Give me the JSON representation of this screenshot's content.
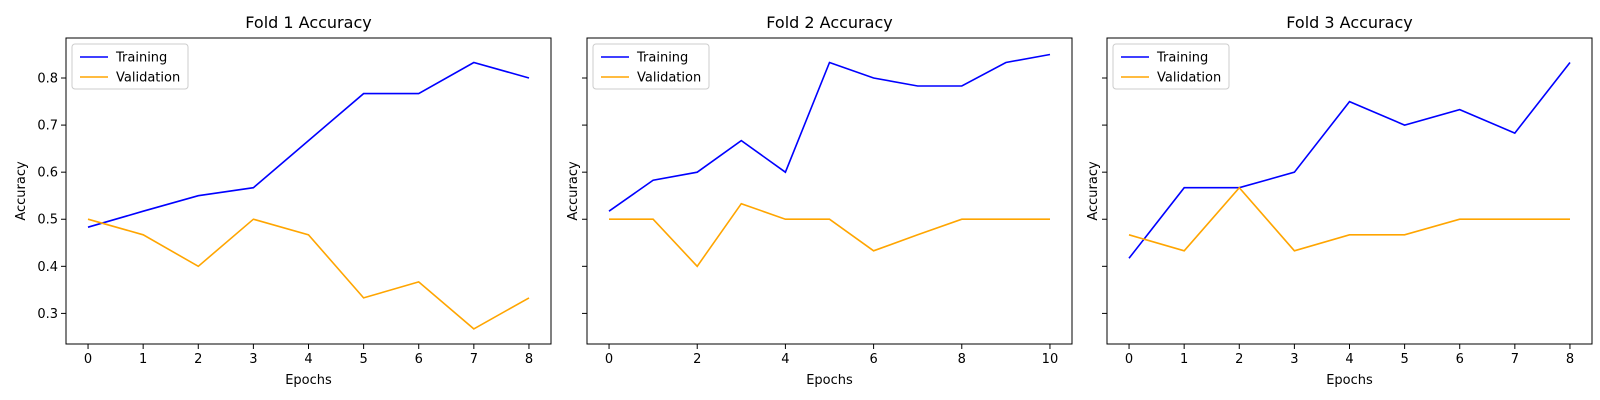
{
  "chart_data": [
    {
      "type": "line",
      "title": "Fold 1 Accuracy",
      "xlabel": "Epochs",
      "ylabel": "Accuracy",
      "xlim": [
        -0.4,
        8.4
      ],
      "ylim": [
        0.235,
        0.885
      ],
      "xticks": [
        0,
        1,
        2,
        3,
        4,
        5,
        6,
        7,
        8
      ],
      "yticks": [
        0.3,
        0.4,
        0.5,
        0.6,
        0.7,
        0.8
      ],
      "ytick_labels_visible": true,
      "grid": false,
      "legend": "upper left",
      "series": [
        {
          "name": "Training",
          "color": "#0000ff",
          "x": [
            0,
            1,
            2,
            3,
            4,
            5,
            6,
            7,
            8
          ],
          "values": [
            0.483,
            0.517,
            0.55,
            0.567,
            0.667,
            0.767,
            0.767,
            0.833,
            0.8
          ]
        },
        {
          "name": "Validation",
          "color": "#ffa500",
          "x": [
            0,
            1,
            2,
            3,
            4,
            5,
            6,
            7,
            8
          ],
          "values": [
            0.5,
            0.467,
            0.4,
            0.5,
            0.467,
            0.333,
            0.367,
            0.267,
            0.333
          ]
        }
      ]
    },
    {
      "type": "line",
      "title": "Fold 2 Accuracy",
      "xlabel": "Epochs",
      "ylabel": "Accuracy",
      "xlim": [
        -0.5,
        10.5
      ],
      "ylim": [
        0.235,
        0.885
      ],
      "xticks": [
        0,
        2,
        4,
        6,
        8,
        10
      ],
      "yticks": [
        0.3,
        0.4,
        0.5,
        0.6,
        0.7,
        0.8
      ],
      "ytick_labels_visible": false,
      "grid": false,
      "legend": "upper left",
      "series": [
        {
          "name": "Training",
          "color": "#0000ff",
          "x": [
            0,
            1,
            2,
            3,
            4,
            5,
            6,
            7,
            8,
            9,
            10
          ],
          "values": [
            0.517,
            0.583,
            0.6,
            0.667,
            0.6,
            0.833,
            0.8,
            0.783,
            0.783,
            0.833,
            0.85
          ]
        },
        {
          "name": "Validation",
          "color": "#ffa500",
          "x": [
            0,
            1,
            2,
            3,
            4,
            5,
            6,
            7,
            8,
            9,
            10
          ],
          "values": [
            0.5,
            0.5,
            0.4,
            0.533,
            0.5,
            0.5,
            0.433,
            0.467,
            0.5,
            0.5,
            0.5
          ]
        }
      ]
    },
    {
      "type": "line",
      "title": "Fold 3 Accuracy",
      "xlabel": "Epochs",
      "ylabel": "Accuracy",
      "xlim": [
        -0.4,
        8.4
      ],
      "ylim": [
        0.235,
        0.885
      ],
      "xticks": [
        0,
        1,
        2,
        3,
        4,
        5,
        6,
        7,
        8
      ],
      "yticks": [
        0.3,
        0.4,
        0.5,
        0.6,
        0.7,
        0.8
      ],
      "ytick_labels_visible": false,
      "grid": false,
      "legend": "upper left",
      "series": [
        {
          "name": "Training",
          "color": "#0000ff",
          "x": [
            0,
            1,
            2,
            3,
            4,
            5,
            6,
            7,
            8
          ],
          "values": [
            0.417,
            0.567,
            0.567,
            0.6,
            0.75,
            0.7,
            0.733,
            0.683,
            0.833
          ]
        },
        {
          "name": "Validation",
          "color": "#ffa500",
          "x": [
            0,
            1,
            2,
            3,
            4,
            5,
            6,
            7,
            8
          ],
          "values": [
            0.467,
            0.433,
            0.567,
            0.433,
            0.467,
            0.467,
            0.5,
            0.5,
            0.5
          ]
        }
      ]
    }
  ]
}
